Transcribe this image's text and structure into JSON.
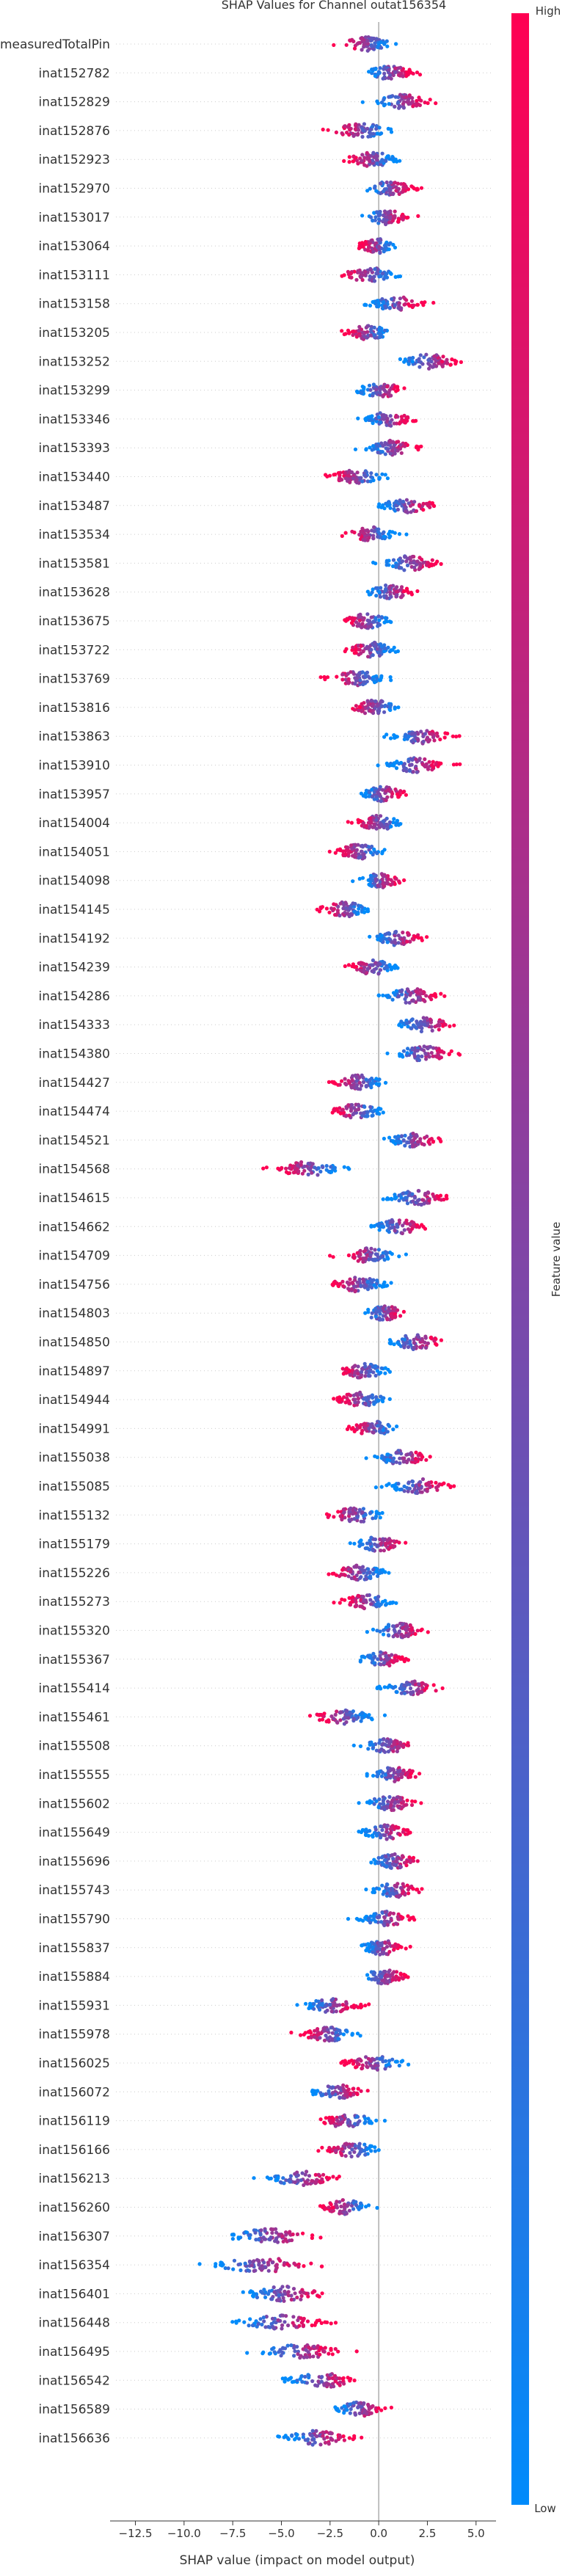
{
  "chart_data": {
    "type": "scatter",
    "subtype": "shap-beeswarm",
    "title": "SHAP Values for Channel outat156354",
    "xlabel": "SHAP value (impact on model output)",
    "xlim": [
      -13.5,
      5.8
    ],
    "xticks": [
      "−12.5",
      "−10.0",
      "−7.5",
      "−5.0",
      "−2.5",
      "0.0",
      "2.5",
      "5.0"
    ],
    "xtick_values": [
      -12.5,
      -10.0,
      -7.5,
      -5.0,
      -2.5,
      0.0,
      2.5,
      5.0
    ],
    "colorbar": {
      "label": "Feature value",
      "high": "High",
      "low": "Low",
      "low_color": "#008bfb",
      "high_color": "#ff0052"
    },
    "features": [
      {
        "name": "measuredTotalPin",
        "center": -0.6,
        "spread": 1.3,
        "corr": 0
      },
      {
        "name": "inat152782",
        "center": 0.6,
        "spread": 1.3,
        "corr": 1
      },
      {
        "name": "inat152829",
        "center": 1.2,
        "spread": 1.4,
        "corr": 1
      },
      {
        "name": "inat152876",
        "center": -0.9,
        "spread": 1.5,
        "corr": 0
      },
      {
        "name": "inat152923",
        "center": -0.3,
        "spread": 1.3,
        "corr": 0
      },
      {
        "name": "inat152970",
        "center": 0.6,
        "spread": 1.3,
        "corr": 1
      },
      {
        "name": "inat153017",
        "center": 0.4,
        "spread": 1.2,
        "corr": 1
      },
      {
        "name": "inat153064",
        "center": -0.1,
        "spread": 1.0,
        "corr": 0
      },
      {
        "name": "inat153111",
        "center": -0.5,
        "spread": 1.4,
        "corr": 0
      },
      {
        "name": "inat153158",
        "center": 0.9,
        "spread": 1.3,
        "corr": 1
      },
      {
        "name": "inat153205",
        "center": -0.5,
        "spread": 1.2,
        "corr": 0
      },
      {
        "name": "inat153252",
        "center": 2.6,
        "spread": 1.5,
        "corr": 1
      },
      {
        "name": "inat153299",
        "center": 0.1,
        "spread": 1.3,
        "corr": 1
      },
      {
        "name": "inat153346",
        "center": 0.5,
        "spread": 1.3,
        "corr": 1
      },
      {
        "name": "inat153393",
        "center": 0.6,
        "spread": 1.3,
        "corr": 1
      },
      {
        "name": "inat153440",
        "center": -1.1,
        "spread": 1.4,
        "corr": 0
      },
      {
        "name": "inat153487",
        "center": 1.5,
        "spread": 1.5,
        "corr": 1
      },
      {
        "name": "inat153534",
        "center": -0.4,
        "spread": 1.2,
        "corr": 0
      },
      {
        "name": "inat153581",
        "center": 1.6,
        "spread": 1.5,
        "corr": 1
      },
      {
        "name": "inat153628",
        "center": 0.6,
        "spread": 1.2,
        "corr": 1
      },
      {
        "name": "inat153675",
        "center": -0.6,
        "spread": 1.2,
        "corr": 0
      },
      {
        "name": "inat153722",
        "center": -0.4,
        "spread": 1.3,
        "corr": 0
      },
      {
        "name": "inat153769",
        "center": -1.1,
        "spread": 1.5,
        "corr": 0
      },
      {
        "name": "inat153816",
        "center": -0.2,
        "spread": 1.3,
        "corr": 0
      },
      {
        "name": "inat153863",
        "center": 2.2,
        "spread": 1.6,
        "corr": 1
      },
      {
        "name": "inat153910",
        "center": 1.9,
        "spread": 1.6,
        "corr": 1
      },
      {
        "name": "inat153957",
        "center": 0.2,
        "spread": 1.2,
        "corr": 1
      },
      {
        "name": "inat154004",
        "center": 0.0,
        "spread": 1.3,
        "corr": 0
      },
      {
        "name": "inat154051",
        "center": -1.0,
        "spread": 1.3,
        "corr": 0
      },
      {
        "name": "inat154098",
        "center": 0.1,
        "spread": 1.1,
        "corr": 1
      },
      {
        "name": "inat154145",
        "center": -1.7,
        "spread": 1.3,
        "corr": 0
      },
      {
        "name": "inat154192",
        "center": 1.0,
        "spread": 1.3,
        "corr": 1
      },
      {
        "name": "inat154239",
        "center": -0.3,
        "spread": 1.3,
        "corr": 0
      },
      {
        "name": "inat154286",
        "center": 1.7,
        "spread": 1.6,
        "corr": 1
      },
      {
        "name": "inat154333",
        "center": 2.3,
        "spread": 1.6,
        "corr": 1
      },
      {
        "name": "inat154380",
        "center": 2.3,
        "spread": 1.6,
        "corr": 1
      },
      {
        "name": "inat154427",
        "center": -1.0,
        "spread": 1.3,
        "corr": 0
      },
      {
        "name": "inat154474",
        "center": -1.1,
        "spread": 1.4,
        "corr": 0
      },
      {
        "name": "inat154521",
        "center": 1.8,
        "spread": 1.4,
        "corr": 1
      },
      {
        "name": "inat154568",
        "center": -3.6,
        "spread": 1.8,
        "corr": 0
      },
      {
        "name": "inat154615",
        "center": 2.0,
        "spread": 1.5,
        "corr": 1
      },
      {
        "name": "inat154662",
        "center": 1.0,
        "spread": 1.4,
        "corr": 1
      },
      {
        "name": "inat154709",
        "center": -0.5,
        "spread": 1.4,
        "corr": 0
      },
      {
        "name": "inat154756",
        "center": -1.0,
        "spread": 1.5,
        "corr": 0
      },
      {
        "name": "inat154803",
        "center": 0.3,
        "spread": 1.2,
        "corr": 1
      },
      {
        "name": "inat154850",
        "center": 1.9,
        "spread": 1.5,
        "corr": 1
      },
      {
        "name": "inat154897",
        "center": -0.8,
        "spread": 1.3,
        "corr": 0
      },
      {
        "name": "inat154944",
        "center": -0.9,
        "spread": 1.4,
        "corr": 0
      },
      {
        "name": "inat154991",
        "center": -0.3,
        "spread": 1.2,
        "corr": 0
      },
      {
        "name": "inat155038",
        "center": 1.2,
        "spread": 1.5,
        "corr": 1
      },
      {
        "name": "inat155085",
        "center": 2.0,
        "spread": 1.6,
        "corr": 1
      },
      {
        "name": "inat155132",
        "center": -1.2,
        "spread": 1.5,
        "corr": 0
      },
      {
        "name": "inat155179",
        "center": 0.0,
        "spread": 1.3,
        "corr": 1
      },
      {
        "name": "inat155226",
        "center": -1.0,
        "spread": 1.4,
        "corr": 0
      },
      {
        "name": "inat155273",
        "center": -0.6,
        "spread": 1.3,
        "corr": 0
      },
      {
        "name": "inat155320",
        "center": 1.0,
        "spread": 1.4,
        "corr": 1
      },
      {
        "name": "inat155367",
        "center": 0.2,
        "spread": 1.2,
        "corr": 1
      },
      {
        "name": "inat155414",
        "center": 1.6,
        "spread": 1.5,
        "corr": 1
      },
      {
        "name": "inat155461",
        "center": -1.8,
        "spread": 1.6,
        "corr": 0
      },
      {
        "name": "inat155508",
        "center": 0.5,
        "spread": 1.3,
        "corr": 1
      },
      {
        "name": "inat155555",
        "center": 0.8,
        "spread": 1.3,
        "corr": 1
      },
      {
        "name": "inat155602",
        "center": 0.6,
        "spread": 1.4,
        "corr": 1
      },
      {
        "name": "inat155649",
        "center": 0.4,
        "spread": 1.3,
        "corr": 1
      },
      {
        "name": "inat155696",
        "center": 0.8,
        "spread": 1.4,
        "corr": 1
      },
      {
        "name": "inat155743",
        "center": 0.9,
        "spread": 1.3,
        "corr": 1
      },
      {
        "name": "inat155790",
        "center": 0.4,
        "spread": 1.3,
        "corr": 1
      },
      {
        "name": "inat155837",
        "center": 0.2,
        "spread": 1.2,
        "corr": 1
      },
      {
        "name": "inat155884",
        "center": 0.3,
        "spread": 1.2,
        "corr": 1
      },
      {
        "name": "inat155931",
        "center": -2.4,
        "spread": 1.5,
        "corr": 1
      },
      {
        "name": "inat155978",
        "center": -2.6,
        "spread": 1.4,
        "corr": 0
      },
      {
        "name": "inat156025",
        "center": -0.3,
        "spread": 1.6,
        "corr": 0
      },
      {
        "name": "inat156072",
        "center": -2.1,
        "spread": 1.4,
        "corr": 1
      },
      {
        "name": "inat156119",
        "center": -1.6,
        "spread": 1.4,
        "corr": 0
      },
      {
        "name": "inat156166",
        "center": -1.4,
        "spread": 1.5,
        "corr": 0
      },
      {
        "name": "inat156213",
        "center": -4.0,
        "spread": 1.8,
        "corr": 1
      },
      {
        "name": "inat156260",
        "center": -1.7,
        "spread": 1.3,
        "corr": 0
      },
      {
        "name": "inat156307",
        "center": -5.6,
        "spread": 2.4,
        "corr": 1
      },
      {
        "name": "inat156354",
        "center": -6.0,
        "spread": 2.6,
        "corr": 1
      },
      {
        "name": "inat156401",
        "center": -4.8,
        "spread": 2.1,
        "corr": 1
      },
      {
        "name": "inat156448",
        "center": -5.1,
        "spread": 2.1,
        "corr": 1
      },
      {
        "name": "inat156495",
        "center": -4.0,
        "spread": 2.0,
        "corr": 1
      },
      {
        "name": "inat156542",
        "center": -2.9,
        "spread": 1.8,
        "corr": 1
      },
      {
        "name": "inat156589",
        "center": -1.0,
        "spread": 1.2,
        "corr": 1
      },
      {
        "name": "inat156636",
        "center": -3.2,
        "spread": 1.8,
        "corr": 1
      }
    ]
  }
}
